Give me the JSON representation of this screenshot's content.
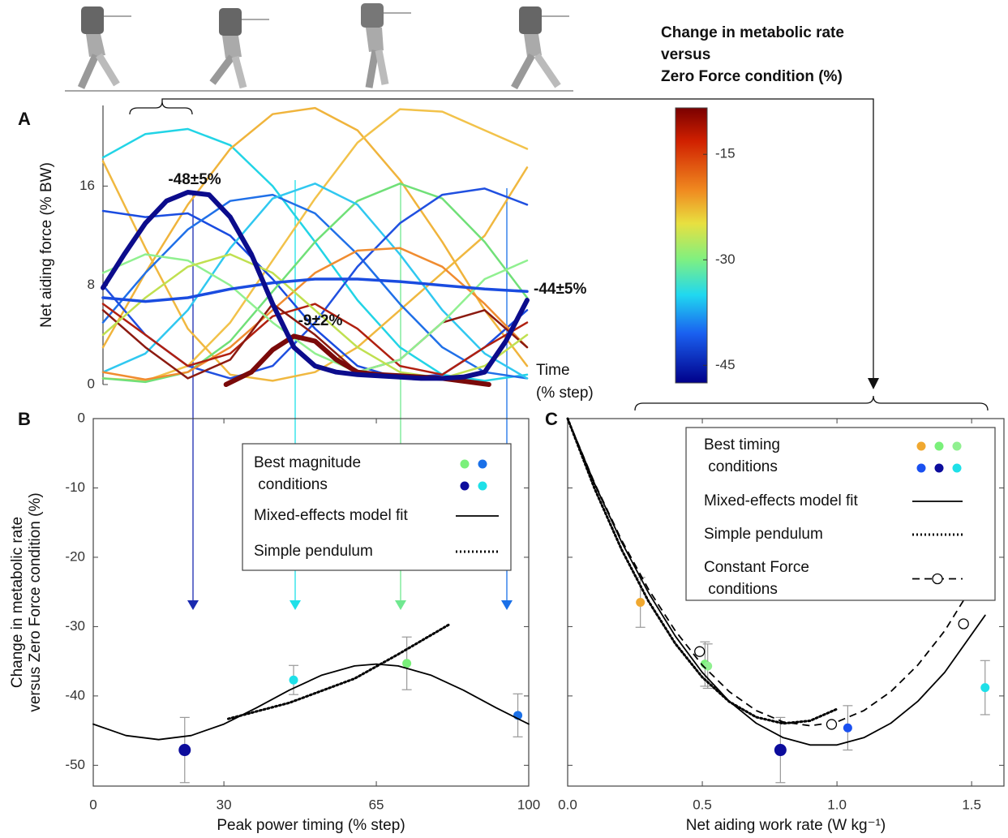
{
  "chart_data": [
    {
      "type": "line",
      "panel_label": "A",
      "y_label": "Net aiding force (% BW)",
      "x_label": [
        "Time",
        "(% step)"
      ],
      "xlim": [
        0,
        100
      ],
      "ylim": [
        0,
        22.5
      ],
      "yticks": [
        0,
        8,
        16
      ],
      "series": [
        {
          "style": "solid",
          "color": "#22d4e6",
          "width": 2.5,
          "x": [
            0,
            10,
            20,
            30,
            40,
            50,
            60,
            70,
            80,
            90,
            100
          ],
          "values": [
            18.3,
            20.2,
            20.6,
            19.3,
            16,
            11.5,
            6.8,
            3,
            0.8,
            0.3,
            0.8
          ]
        },
        {
          "style": "solid",
          "color": "#f0b43c",
          "width": 2.5,
          "x": [
            0,
            10,
            20,
            30,
            40,
            50,
            60,
            70,
            80,
            90,
            100
          ],
          "values": [
            3,
            9,
            14.5,
            19,
            21.8,
            22.3,
            20.5,
            16.5,
            11.5,
            6,
            1.5
          ]
        },
        {
          "style": "solid",
          "color": "#f2c24a",
          "width": 2.5,
          "x": [
            0,
            10,
            20,
            30,
            40,
            50,
            60,
            70,
            80,
            90,
            100
          ],
          "values": [
            0.5,
            0.3,
            1.5,
            5,
            10,
            15,
            19.5,
            22.2,
            22,
            20.5,
            19
          ]
        },
        {
          "style": "solid",
          "color": "#f0b840",
          "width": 2.5,
          "x": [
            0,
            10,
            20,
            30,
            40,
            50,
            60,
            70,
            80,
            90,
            100
          ],
          "values": [
            18,
            11,
            4.5,
            0.8,
            0.3,
            1,
            3,
            6,
            9,
            12,
            17.5
          ]
        },
        {
          "style": "solid",
          "color": "#1a4ce0",
          "width": 2.5,
          "x": [
            0,
            10,
            20,
            30,
            40,
            50,
            60,
            70,
            80,
            90,
            100
          ],
          "values": [
            14,
            13.5,
            13.8,
            12,
            8.5,
            4.5,
            1.5,
            0.5,
            0.8,
            3,
            6
          ]
        },
        {
          "style": "solid",
          "color": "#2070e8",
          "width": 2.5,
          "x": [
            0,
            10,
            20,
            30,
            40,
            50,
            60,
            70,
            80,
            90,
            100
          ],
          "values": [
            5,
            9,
            12.5,
            14.8,
            15.3,
            13.8,
            10.5,
            6.5,
            3,
            1,
            0.5
          ]
        },
        {
          "style": "solid",
          "color": "#70e078",
          "width": 2.5,
          "x": [
            0,
            10,
            20,
            30,
            40,
            50,
            60,
            70,
            80,
            90,
            100
          ],
          "values": [
            0.5,
            0.2,
            1,
            3.5,
            7.5,
            11.5,
            14.8,
            16.2,
            15,
            11.5,
            7
          ]
        },
        {
          "style": "solid",
          "color": "#30c8f0",
          "width": 2.5,
          "x": [
            0,
            10,
            20,
            30,
            40,
            50,
            60,
            70,
            80,
            90,
            100
          ],
          "values": [
            1,
            2.5,
            6,
            11,
            15,
            16.2,
            14.5,
            10.5,
            6,
            2.5,
            0.5
          ]
        },
        {
          "style": "solid",
          "color": "#2050e0",
          "width": 2.5,
          "x": [
            0,
            10,
            20,
            30,
            40,
            50,
            60,
            70,
            80,
            90,
            100
          ],
          "values": [
            8,
            4,
            1.5,
            0.5,
            1.5,
            5,
            9.5,
            13,
            15.3,
            15.8,
            14.5
          ]
        },
        {
          "style": "solid",
          "color": "#f08c30",
          "width": 2.5,
          "x": [
            0,
            10,
            20,
            30,
            40,
            50,
            60,
            70,
            80,
            90,
            100
          ],
          "values": [
            1,
            0.4,
            1,
            3,
            6,
            9,
            10.8,
            11,
            9.5,
            6.5,
            3
          ]
        },
        {
          "style": "solid",
          "color": "#b02010",
          "width": 2.5,
          "x": [
            0,
            10,
            20,
            30,
            40,
            50,
            60,
            70,
            80,
            90,
            100
          ],
          "values": [
            6.5,
            4,
            1.5,
            2.5,
            5.5,
            6.5,
            4.5,
            1.5,
            0.8,
            3,
            5
          ]
        },
        {
          "style": "solid",
          "color": "#8c1a10",
          "width": 2.5,
          "x": [
            0,
            10,
            20,
            30,
            40,
            50,
            60,
            70,
            80,
            90,
            100
          ],
          "values": [
            6,
            3,
            0.5,
            2,
            6.5,
            4,
            1,
            2,
            5,
            6,
            3
          ]
        },
        {
          "style": "solid",
          "color": "#90f090",
          "width": 2.5,
          "x": [
            0,
            10,
            20,
            30,
            40,
            50,
            60,
            70,
            80,
            90,
            100
          ],
          "values": [
            9,
            10.5,
            10,
            8,
            5,
            2.5,
            1,
            2,
            5,
            8.5,
            10
          ]
        },
        {
          "style": "solid",
          "color": "#c0e050",
          "width": 2.5,
          "x": [
            0,
            10,
            20,
            30,
            40,
            50,
            60,
            70,
            80,
            90,
            100
          ],
          "values": [
            4,
            7,
            9.5,
            10.5,
            9,
            6,
            3,
            1,
            0.5,
            1.5,
            4
          ]
        },
        {
          "style": "solid",
          "color": "#1a4ce0",
          "width": 3.5,
          "x": [
            0,
            10,
            20,
            30,
            40,
            50,
            60,
            70,
            80,
            90,
            100
          ],
          "values": [
            7.0,
            6.7,
            7.0,
            7.7,
            8.2,
            8.5,
            8.5,
            8.3,
            8.0,
            7.7,
            7.5
          ]
        },
        {
          "style": "solid",
          "color": "#7a0a0a",
          "width": 6,
          "x": [
            29,
            35,
            40,
            45,
            50,
            55,
            60,
            65,
            70,
            80,
            91
          ],
          "values": [
            0,
            1,
            2.8,
            3.9,
            3.5,
            2,
            1,
            0.8,
            0.7,
            0.5,
            0
          ]
        },
        {
          "style": "solid",
          "color": "#0c0c8c",
          "width": 6,
          "x": [
            0,
            5,
            10,
            15,
            20,
            25,
            30,
            35,
            40,
            45,
            50,
            55,
            60,
            65,
            70,
            75,
            80,
            85,
            90,
            95,
            100
          ],
          "values": [
            7.8,
            10.5,
            13,
            14.8,
            15.5,
            15.3,
            13.5,
            10.5,
            6.5,
            3,
            1.5,
            1,
            0.8,
            0.7,
            0.6,
            0.5,
            0.5,
            0.6,
            1.0,
            3.5,
            6.8
          ]
        }
      ],
      "annotations": [
        {
          "text": "-48±5%",
          "color": "#1a1a8c"
        },
        {
          "text": "-9±2%",
          "color": "#7a2a2a"
        },
        {
          "text": "-44±5%",
          "color": "#1a50e8"
        }
      ],
      "colorbar": {
        "title": [
          "Change in metabolic rate",
          "versus",
          "Zero Force  condition (%)"
        ],
        "clim": [
          -47.5,
          -8.4
        ],
        "ticks": [
          -15,
          -30,
          -45
        ]
      }
    },
    {
      "type": "line",
      "panel_label": "B",
      "y_label": [
        "Change in metabolic rate",
        "versus Zero Force condition (%)"
      ],
      "x_label": "Peak power timing (% step)",
      "xlim": [
        0,
        100
      ],
      "ylim": [
        -53,
        0
      ],
      "xticks": [
        0,
        30,
        65,
        100
      ],
      "yticks": [
        0,
        -10,
        -20,
        -30,
        -40,
        -50
      ],
      "show_ytick_labels": true,
      "series": [
        {
          "name": "Best magnitude conditions",
          "style": "markers",
          "x": [
            72,
            97.5,
            21,
            46
          ],
          "values": [
            -35.3,
            -42.8,
            -47.8,
            -37.7
          ],
          "errors": [
            3.8,
            3.1,
            4.7,
            2.1
          ],
          "colors": [
            "#7af07a",
            "#1a70e8",
            "#0c0c9c",
            "#1ee0e8"
          ]
        },
        {
          "name": "Mixed-effects model fit",
          "style": "solid",
          "color": "#000000",
          "width": 1.8,
          "x": [
            0,
            7.5,
            15,
            22.5,
            30,
            37.5,
            45,
            52.5,
            60,
            65,
            70,
            77.5,
            85,
            92.5,
            100
          ],
          "values": [
            -44.06,
            -45.71,
            -46.3,
            -45.71,
            -44.06,
            -41.7,
            -39.17,
            -37.0,
            -35.67,
            -35.4,
            -35.67,
            -37.0,
            -39.17,
            -41.7,
            -44.06
          ]
        },
        {
          "name": "Simple pendulum",
          "style": "dotted",
          "color": "#000000",
          "width": 3,
          "x": [
            31,
            45,
            60,
            70,
            82
          ],
          "values": [
            -43.3,
            -41,
            -37.5,
            -34,
            -29.6
          ]
        }
      ]
    },
    {
      "type": "line",
      "panel_label": "C",
      "x_label": "Net aiding work rate (W kg⁻¹)",
      "xlim": [
        0,
        1.62
      ],
      "ylim": [
        -53,
        0
      ],
      "xticks": [
        {
          "value": 0,
          "label": "0.0"
        },
        0.5,
        {
          "value": 1,
          "label": "1.0"
        },
        1.5
      ],
      "yticks": [
        0,
        -10,
        -20,
        -30,
        -40,
        -50
      ],
      "show_ytick_labels": false,
      "series": [
        {
          "name": "Best timing conditions",
          "style": "markers",
          "x": [
            0.27,
            0.51,
            0.52,
            1.04,
            0.79,
            1.55
          ],
          "values": [
            -26.5,
            -35.4,
            -35.7,
            -44.6,
            -47.8,
            -38.8
          ],
          "errors": [
            3.6,
            3.2,
            3.2,
            3.2,
            4.7,
            3.9
          ],
          "colors": [
            "#f0a830",
            "#7af07a",
            "#90f090",
            "#1a50f0",
            "#0c0c9c",
            "#1ee0e8"
          ]
        },
        {
          "name": "Mixed-effects model fit",
          "style": "solid",
          "color": "#000000",
          "width": 1.8,
          "x": [
            0,
            0.1,
            0.2,
            0.3,
            0.4,
            0.5,
            0.6,
            0.7,
            0.8,
            0.9,
            1.0,
            1.1,
            1.2,
            1.3,
            1.4,
            1.55
          ],
          "values": [
            0,
            -9.41,
            -17.78,
            -25.1,
            -31.38,
            -36.61,
            -40.79,
            -43.93,
            -46.02,
            -47.07,
            -47.07,
            -46.02,
            -43.93,
            -40.79,
            -36.61,
            -28.37
          ]
        },
        {
          "name": "Simple pendulum",
          "style": "dotted",
          "color": "#000000",
          "width": 3,
          "x": [
            0,
            0.1,
            0.2,
            0.3,
            0.4,
            0.5,
            0.6,
            0.7,
            0.8,
            0.9,
            1.0
          ],
          "values": [
            0,
            -10.1,
            -18.86,
            -26.32,
            -32.46,
            -37.3,
            -40.83,
            -43.06,
            -43.97,
            -43.58,
            -41.88
          ]
        },
        {
          "name": "Constant Force conditions",
          "style": "open-markers",
          "color": "#000000",
          "width": 1.8,
          "x": [
            0.49,
            0.98,
            1.47
          ],
          "values": [
            -33.6,
            -44.1,
            -29.6
          ],
          "fit_x": [
            0,
            0.1,
            0.2,
            0.3,
            0.4,
            0.5,
            0.6,
            0.7,
            0.8,
            0.9,
            1.0,
            1.1,
            1.2,
            1.3,
            1.4,
            1.55
          ],
          "fit_values": [
            0,
            -9.3,
            -17.5,
            -24.61,
            -30.62,
            -35.55,
            -39.38,
            -42.11,
            -43.75,
            -44.3,
            -43.75,
            -42.11,
            -39.38,
            -35.55,
            -30.62,
            -21.19
          ]
        }
      ]
    }
  ]
}
